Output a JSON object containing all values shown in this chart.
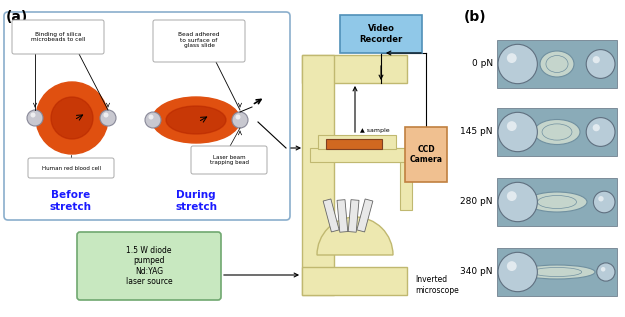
{
  "fig_width": 6.25,
  "fig_height": 3.17,
  "dpi": 100,
  "bg_color": "#ffffff",
  "panel_a_label": "(a)",
  "panel_b_label": "(b)",
  "box_border": "#8aaecc",
  "before_label": "Before\nstretch",
  "during_label": "During\nstretch",
  "cell_color_outer": "#e05010",
  "cell_color_inner": "#cc3300",
  "bead_color": "#c0c0c8",
  "bead_edge": "#888898",
  "label_color": "#1a1aff",
  "annotation_box_border": "#aaaaaa",
  "microscope_body": "#ede8b0",
  "microscope_border": "#c0b870",
  "video_box": "#90c8e8",
  "video_border": "#5090b8",
  "ccd_box": "#f0c090",
  "ccd_border": "#c08040",
  "laser_box_bg": "#c8e8c0",
  "laser_box_border": "#70a870",
  "sample_color": "#d06820",
  "cell_panel_bg": "#8aabb8",
  "force_labels": [
    "0 pN",
    "145 pN",
    "280 pN",
    "340 pN"
  ]
}
